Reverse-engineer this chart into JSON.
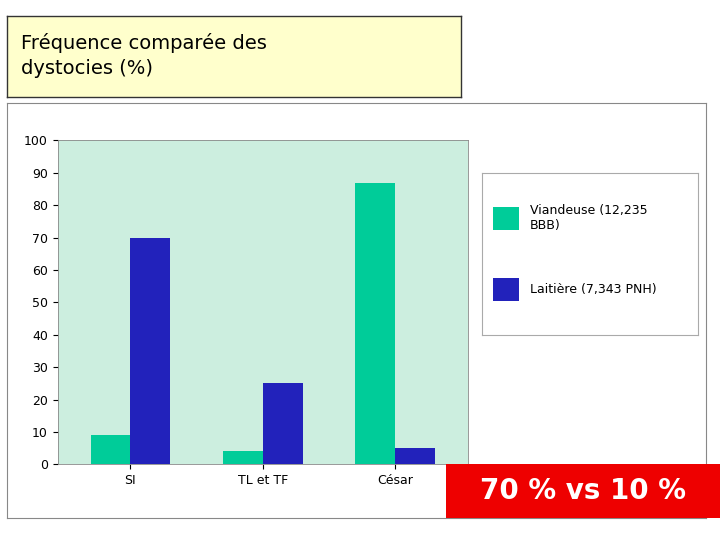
{
  "title_line1": "Fréquence comparée des",
  "title_line2": "dystocies (%)",
  "categories": [
    "SI",
    "TL et TF",
    "César"
  ],
  "series": [
    {
      "name": "Viandeuse (12,235\nBBB)",
      "values": [
        9,
        4,
        87
      ],
      "color": "#00CC99"
    },
    {
      "name": "Laitière (7,343 PNH)",
      "values": [
        70,
        25,
        5
      ],
      "color": "#2222BB"
    }
  ],
  "ylim": [
    0,
    100
  ],
  "yticks": [
    0,
    10,
    20,
    30,
    40,
    50,
    60,
    70,
    80,
    90,
    100
  ],
  "plot_bg_color": "#CCEEDF",
  "title_box_color": "#FFFFCC",
  "title_fontsize": 14,
  "axis_fontsize": 9,
  "legend_fontsize": 9,
  "annotation_text": "70 % vs 10 %",
  "annotation_bg": "#EE0000",
  "annotation_fg": "#FFFFFF",
  "fig_bg_color": "#FFFFFF",
  "outer_frame_color": "#888888",
  "bar_width": 0.3
}
